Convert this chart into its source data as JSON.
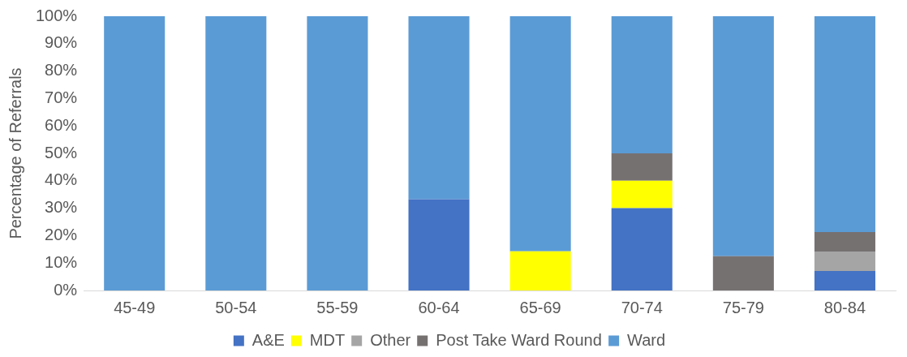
{
  "chart_data": {
    "type": "bar",
    "stacked": true,
    "ylabel": "Percentage of Referrals",
    "categories": [
      "45-49",
      "50-54",
      "55-59",
      "60-64",
      "65-69",
      "70-74",
      "75-79",
      "80-84"
    ],
    "series": [
      {
        "name": "A&E",
        "color": "#4472c4",
        "values": [
          0,
          0,
          0,
          33.3,
          0,
          30,
          0,
          7.1
        ]
      },
      {
        "name": "MDT",
        "color": "#ffff00",
        "values": [
          0,
          0,
          0,
          0,
          14.3,
          10,
          0,
          0
        ]
      },
      {
        "name": "Other",
        "color": "#a5a5a5",
        "values": [
          0,
          0,
          0,
          0,
          0,
          0,
          0,
          7.1
        ]
      },
      {
        "name": "Post Take Ward Round",
        "color": "#767171",
        "values": [
          0,
          0,
          0,
          0,
          0,
          10,
          12.5,
          7.1
        ]
      },
      {
        "name": "Ward",
        "color": "#5b9bd5",
        "values": [
          100,
          100,
          100,
          66.7,
          85.7,
          50,
          87.5,
          78.7
        ]
      }
    ],
    "ylim": [
      0,
      100
    ],
    "yticks": [
      {
        "value": 0,
        "label": "0%"
      },
      {
        "value": 10,
        "label": "10%"
      },
      {
        "value": 20,
        "label": "20%"
      },
      {
        "value": 30,
        "label": "30%"
      },
      {
        "value": 40,
        "label": "40%"
      },
      {
        "value": 50,
        "label": "50%"
      },
      {
        "value": 60,
        "label": "60%"
      },
      {
        "value": 70,
        "label": "70%"
      },
      {
        "value": 80,
        "label": "80%"
      },
      {
        "value": 90,
        "label": "90%"
      },
      {
        "value": 100,
        "label": "100%"
      }
    ],
    "grid": false,
    "legend": "bottom"
  }
}
